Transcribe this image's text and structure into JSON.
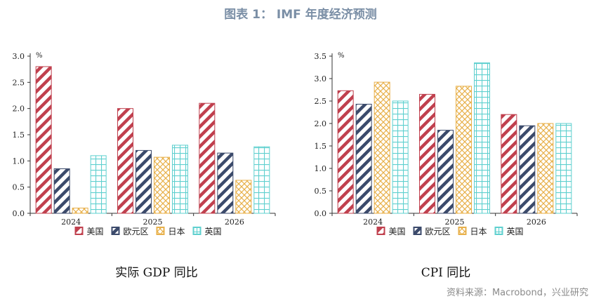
{
  "figure_title": "图表 1： IMF 年度经济预测",
  "source": "资料来源：Macrobond，兴业研究",
  "patterns": {
    "美国": {
      "color": "#c0404e",
      "style": "diagonal"
    },
    "欧元区": {
      "color": "#3b4a6b",
      "style": "diagonal"
    },
    "日本": {
      "color": "#e8b04a",
      "style": "crosshatch"
    },
    "英国": {
      "color": "#5fd0cf",
      "style": "grid"
    }
  },
  "chart_data": [
    {
      "type": "bar",
      "title": "实际 GDP 同比",
      "unit": "%",
      "categories": [
        "2024",
        "2025",
        "2026"
      ],
      "ylim": [
        0,
        3.0
      ],
      "yticks": [
        "0.0",
        "0.5",
        "1.0",
        "1.5",
        "2.0",
        "2.5",
        "3.0"
      ],
      "legend_position": "bottom",
      "grid": false,
      "series": [
        {
          "name": "美国",
          "values": [
            2.8,
            2.0,
            2.1
          ]
        },
        {
          "name": "欧元区",
          "values": [
            0.85,
            1.2,
            1.15
          ]
        },
        {
          "name": "日本",
          "values": [
            0.1,
            1.07,
            0.63
          ]
        },
        {
          "name": "英国",
          "values": [
            1.1,
            1.3,
            1.27
          ]
        }
      ]
    },
    {
      "type": "bar",
      "title": "CPI 同比",
      "unit": "%",
      "categories": [
        "2024",
        "2025",
        "2026"
      ],
      "ylim": [
        0,
        3.5
      ],
      "yticks": [
        "0.0",
        "0.5",
        "1.0",
        "1.5",
        "2.0",
        "2.5",
        "3.0",
        "3.5"
      ],
      "legend_position": "bottom",
      "grid": false,
      "series": [
        {
          "name": "美国",
          "values": [
            2.73,
            2.65,
            2.2
          ]
        },
        {
          "name": "欧元区",
          "values": [
            2.43,
            1.85,
            1.95
          ]
        },
        {
          "name": "日本",
          "values": [
            2.92,
            2.83,
            2.0
          ]
        },
        {
          "name": "英国",
          "values": [
            2.5,
            3.35,
            2.0
          ]
        }
      ]
    }
  ]
}
